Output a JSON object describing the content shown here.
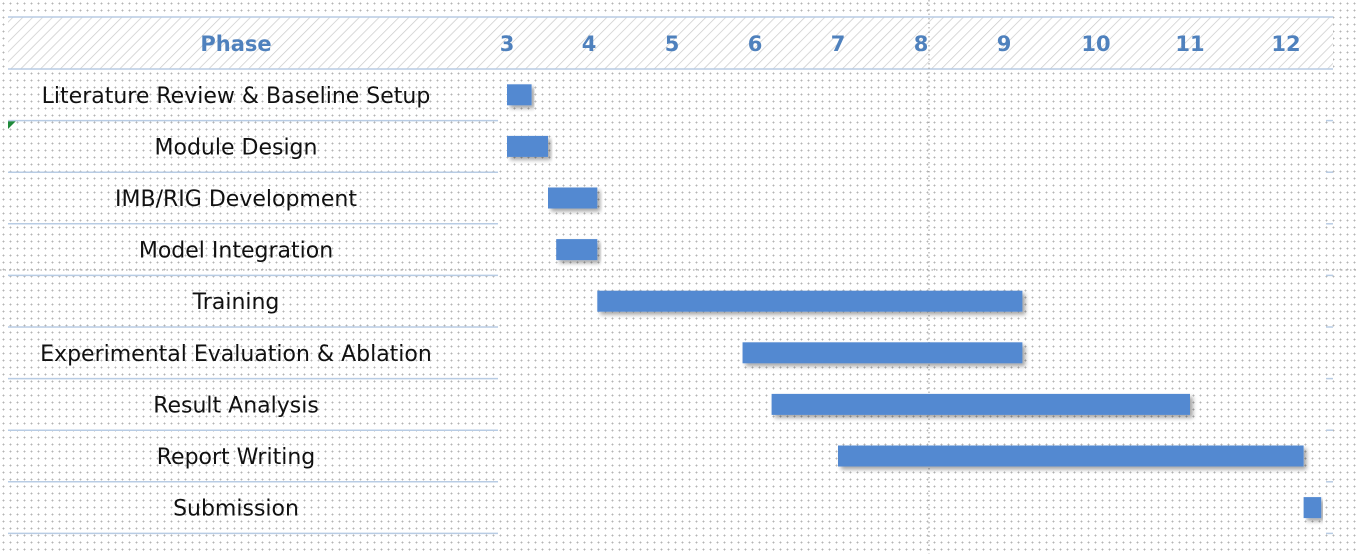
{
  "header": {
    "phase_label": "Phase"
  },
  "chart_data": {
    "type": "bar",
    "subtype": "gantt",
    "axis_ticks": [
      "3",
      "4",
      "5",
      "6",
      "7",
      "8",
      "9",
      "10",
      "11",
      "12"
    ],
    "xlim": [
      3,
      12.5
    ],
    "grid": false,
    "tasks": [
      {
        "name": "Literature Review & Baseline Setup",
        "start": 3.0,
        "end": 3.3
      },
      {
        "name": "Module Design",
        "start": 3.0,
        "end": 3.5
      },
      {
        "name": "IMB/RIG Development",
        "start": 3.5,
        "end": 4.1
      },
      {
        "name": "Model Integration",
        "start": 3.6,
        "end": 4.1
      },
      {
        "name": "Training",
        "start": 4.1,
        "end": 9.2
      },
      {
        "name": "Experimental Evaluation & Ablation",
        "start": 5.85,
        "end": 9.2
      },
      {
        "name": "Result Analysis",
        "start": 6.2,
        "end": 11.0
      },
      {
        "name": "Report Writing",
        "start": 7.0,
        "end": 12.2
      },
      {
        "name": "Submission",
        "start": 12.2,
        "end": 12.4
      }
    ],
    "colors": {
      "bar": "#5389d1",
      "header_text": "#4f81bd",
      "grid_line": "#b8cce4",
      "header_hatch": "#c8c8c8"
    }
  }
}
